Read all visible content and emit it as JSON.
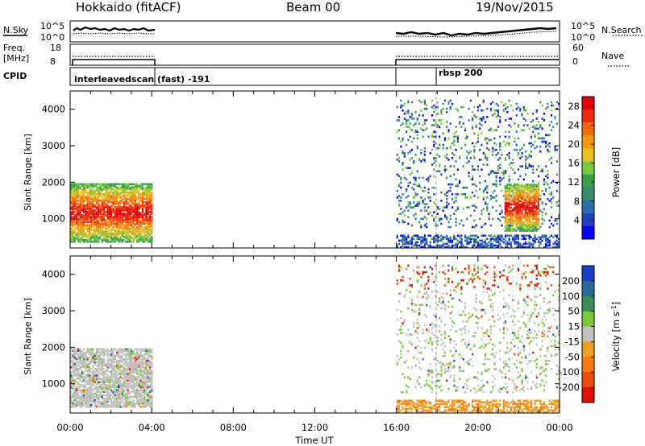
{
  "header": {
    "station": "Hokkaido (fitACF)",
    "beam": "Beam 00",
    "date": "19/Nov/2015"
  },
  "noise_panel": {
    "left_label": "N.Sky",
    "left_ticks": [
      "10^5",
      "10^0"
    ],
    "right_label": "N.Search",
    "right_ticks": [
      "10^5",
      "10^0"
    ]
  },
  "freq_panel": {
    "left_label_1": "Freq.",
    "left_label_2": "[MHz]",
    "left_ticks": [
      "18",
      "8"
    ],
    "right_label": "Nave",
    "right_ticks": [
      "60",
      "0"
    ]
  },
  "cpid_panel": {
    "label": "CPID",
    "segments": [
      {
        "start_hour": 0,
        "end_hour": 4,
        "text": "interleavedscan (fast) -191"
      },
      {
        "start_hour": 16,
        "end_hour": 18,
        "text": ""
      },
      {
        "start_hour": 18,
        "end_hour": 24,
        "text": "rbsp 200"
      }
    ]
  },
  "time_axis": {
    "label": "Time UT",
    "ticks": [
      "00:00",
      "04:00",
      "08:00",
      "12:00",
      "16:00",
      "20:00",
      "00:00"
    ]
  },
  "chart_data": [
    {
      "type": "heatmap",
      "ylabel": "Slant Range [km]",
      "xlabel": "",
      "x_range_hours": [
        0,
        24
      ],
      "ylim": [
        200,
        4500
      ],
      "y_ticks": [
        1000,
        2000,
        3000,
        4000
      ],
      "colorbar": {
        "label": "Power [dB]",
        "ticks": [
          4,
          8,
          12,
          16,
          20,
          24,
          28
        ],
        "range": [
          0,
          30
        ],
        "colors": [
          "#0000ff",
          "#2040c0",
          "#2e6ea8",
          "#3a8c6a",
          "#3aa04a",
          "#7cc83c",
          "#e8c020",
          "#f59a10",
          "#f06a10",
          "#ee2a10",
          "#e00000"
        ]
      },
      "regions": [
        {
          "t0": 0.0,
          "t1": 4.0,
          "r0": 400,
          "r1": 2000,
          "level": "high"
        },
        {
          "t0": 16.0,
          "t1": 24.0,
          "r0": 250,
          "r1": 600,
          "level": "low"
        },
        {
          "t0": 16.0,
          "t1": 24.0,
          "r0": 800,
          "r1": 4300,
          "level": "mixed"
        },
        {
          "t0": 21.3,
          "t1": 23.0,
          "r0": 700,
          "r1": 2000,
          "level": "high"
        }
      ]
    },
    {
      "type": "heatmap",
      "ylabel": "Slant Range [km]",
      "xlabel": "Time UT",
      "x_range_hours": [
        0,
        24
      ],
      "ylim": [
        200,
        4500
      ],
      "y_ticks": [
        1000,
        2000,
        3000,
        4000
      ],
      "colorbar": {
        "label": "Velocity [m s^-1]",
        "ticks": [
          "200",
          "100",
          "50",
          "15",
          "-15",
          "-50",
          "-100",
          "-200"
        ],
        "colors": [
          "#1a3cc8",
          "#2a6a9c",
          "#3a8c5a",
          "#78c83a",
          "#c0c0c0",
          "#f0a020",
          "#f57a10",
          "#f04a10",
          "#e01000"
        ]
      },
      "regions": [
        {
          "t0": 0.0,
          "t1": 4.0,
          "r0": 400,
          "r1": 2000,
          "level": "grey"
        },
        {
          "t0": 16.0,
          "t1": 24.0,
          "r0": 250,
          "r1": 600,
          "level": "orange"
        },
        {
          "t0": 16.0,
          "t1": 24.0,
          "r0": 800,
          "r1": 4300,
          "level": "mixed"
        }
      ]
    }
  ]
}
